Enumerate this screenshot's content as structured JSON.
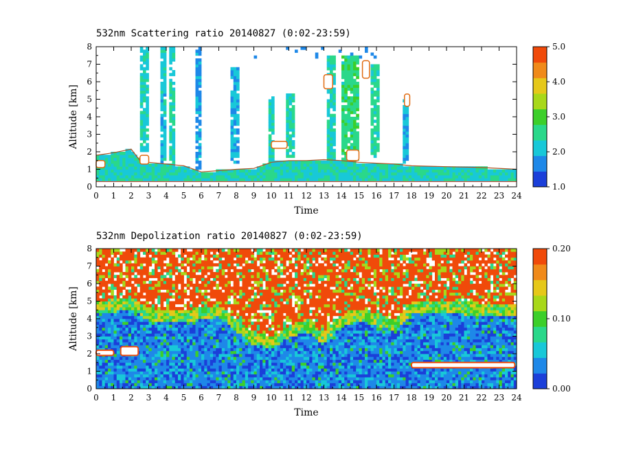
{
  "chart_data": [
    {
      "type": "heatmap",
      "title": "532nm Scattering ratio  20140827 (0:02-23:59)",
      "xlabel": "Time",
      "ylabel": "Altitude [km]",
      "xlim": [
        0,
        24
      ],
      "ylim": [
        0,
        8
      ],
      "x_ticks": [
        "0",
        "1",
        "2",
        "3",
        "4",
        "5",
        "6",
        "7",
        "8",
        "9",
        "10",
        "11",
        "12",
        "13",
        "14",
        "15",
        "16",
        "17",
        "18",
        "19",
        "20",
        "21",
        "22",
        "23",
        "24"
      ],
      "y_ticks": [
        "0",
        "1",
        "2",
        "3",
        "4",
        "5",
        "6",
        "7",
        "8"
      ],
      "colorbar": {
        "min": 1.0,
        "max": 5.0,
        "tick_labels": [
          "1.0",
          "2.0",
          "3.0",
          "4.0",
          "5.0"
        ],
        "tick_values": [
          1.0,
          2.0,
          3.0,
          4.0,
          5.0
        ],
        "colors": [
          "#1b3fd9",
          "#1e88e8",
          "#18c8d8",
          "#2ad88a",
          "#3ccf2a",
          "#a8d81a",
          "#e6c81a",
          "#f08a1a",
          "#f04a0a"
        ]
      },
      "features": {
        "boundary_layer_top_km": [
          [
            0,
            1.8
          ],
          [
            1,
            1.95
          ],
          [
            2,
            2.15
          ],
          [
            2.5,
            1.5
          ],
          [
            3,
            1.4
          ],
          [
            5,
            1.2
          ],
          [
            6,
            0.85
          ],
          [
            8,
            1.0
          ],
          [
            9,
            1.05
          ],
          [
            10,
            1.4
          ],
          [
            11,
            1.5
          ],
          [
            12,
            1.5
          ],
          [
            13,
            1.55
          ],
          [
            14,
            1.5
          ],
          [
            15,
            1.4
          ],
          [
            16,
            1.35
          ],
          [
            17,
            1.3
          ],
          [
            18,
            1.2
          ],
          [
            20,
            1.15
          ],
          [
            22,
            1.1
          ],
          [
            24,
            1.0
          ]
        ],
        "cloud_columns": [
          {
            "x": 2.7,
            "w": 0.3,
            "top": 8.0,
            "bottom": 2.0,
            "value": 2.2
          },
          {
            "x": 3.8,
            "w": 0.2,
            "top": 8.0,
            "bottom": 1.4,
            "value": 2.1
          },
          {
            "x": 4.3,
            "w": 0.25,
            "top": 8.0,
            "bottom": 1.3,
            "value": 2.3
          },
          {
            "x": 5.8,
            "w": 0.1,
            "top": 8.0,
            "bottom": 1.0,
            "value": 1.8
          },
          {
            "x": 7.9,
            "w": 0.3,
            "top": 6.8,
            "bottom": 1.4,
            "value": 2.0
          },
          {
            "x": 10.0,
            "w": 0.15,
            "top": 5.2,
            "bottom": 1.2,
            "value": 2.3
          },
          {
            "x": 11.1,
            "w": 0.3,
            "top": 5.3,
            "bottom": 1.6,
            "value": 2.4
          },
          {
            "x": 13.4,
            "w": 0.3,
            "top": 7.5,
            "bottom": 1.5,
            "value": 2.3
          },
          {
            "x": 14.5,
            "w": 0.9,
            "top": 7.5,
            "bottom": 1.5,
            "value": 2.6
          },
          {
            "x": 15.9,
            "w": 0.4,
            "top": 7.0,
            "bottom": 1.6,
            "value": 2.4
          },
          {
            "x": 17.7,
            "w": 0.25,
            "top": 5.0,
            "bottom": 1.3,
            "value": 2.0
          }
        ],
        "saturated_patches": [
          {
            "x": 0.0,
            "x2": 0.5,
            "y": 1.1,
            "y2": 1.5
          },
          {
            "x": 2.5,
            "x2": 3.0,
            "y": 1.3,
            "y2": 1.8
          },
          {
            "x": 10.0,
            "x2": 10.9,
            "y": 2.2,
            "y2": 2.6
          },
          {
            "x": 14.3,
            "x2": 15.0,
            "y": 1.5,
            "y2": 2.1
          },
          {
            "x": 15.2,
            "x2": 15.6,
            "y": 6.2,
            "y2": 7.2
          },
          {
            "x": 13.0,
            "x2": 13.5,
            "y": 5.6,
            "y2": 6.4
          },
          {
            "x": 17.6,
            "x2": 17.9,
            "y": 4.6,
            "y2": 5.3
          }
        ]
      }
    },
    {
      "type": "heatmap",
      "title": "532nm Depolization ratio  20140827 (0:02-23:59)",
      "xlabel": "Time",
      "ylabel": "Altitude [km]",
      "xlim": [
        0,
        24
      ],
      "ylim": [
        0,
        8
      ],
      "x_ticks": [
        "0",
        "1",
        "2",
        "3",
        "4",
        "5",
        "6",
        "7",
        "8",
        "9",
        "10",
        "11",
        "12",
        "13",
        "14",
        "15",
        "16",
        "17",
        "18",
        "19",
        "20",
        "21",
        "22",
        "23",
        "24"
      ],
      "y_ticks": [
        "0",
        "1",
        "2",
        "3",
        "4",
        "5",
        "6",
        "7",
        "8"
      ],
      "colorbar": {
        "min": 0.0,
        "max": 0.2,
        "tick_labels": [
          "0.00",
          "0.10",
          "0.20"
        ],
        "tick_values": [
          0.0,
          0.1,
          0.2
        ],
        "colors": [
          "#1b3fd9",
          "#1e88e8",
          "#18c8d8",
          "#2ad88a",
          "#3ccf2a",
          "#a8d81a",
          "#e6c81a",
          "#f08a1a",
          "#f04a0a"
        ]
      },
      "features": {
        "noise_onset_km": [
          [
            0,
            5.0
          ],
          [
            2,
            5.2
          ],
          [
            3,
            4.6
          ],
          [
            5,
            4.5
          ],
          [
            7,
            4.8
          ],
          [
            9,
            3.2
          ],
          [
            10,
            3.0
          ],
          [
            11,
            3.6
          ],
          [
            12,
            4.0
          ],
          [
            13,
            3.2
          ],
          [
            14,
            4.2
          ],
          [
            15,
            4.6
          ],
          [
            16,
            4.3
          ],
          [
            17,
            4.0
          ],
          [
            18,
            5.0
          ],
          [
            20,
            5.0
          ],
          [
            22,
            4.9
          ],
          [
            24,
            4.8
          ]
        ],
        "high_depol_layers": [
          {
            "x": 0.0,
            "x2": 1.0,
            "y": 1.9,
            "y2": 2.2
          },
          {
            "x": 1.4,
            "x2": 2.4,
            "y": 1.9,
            "y2": 2.4
          },
          {
            "x": 18.0,
            "x2": 23.9,
            "y": 1.2,
            "y2": 1.5
          }
        ]
      }
    }
  ]
}
